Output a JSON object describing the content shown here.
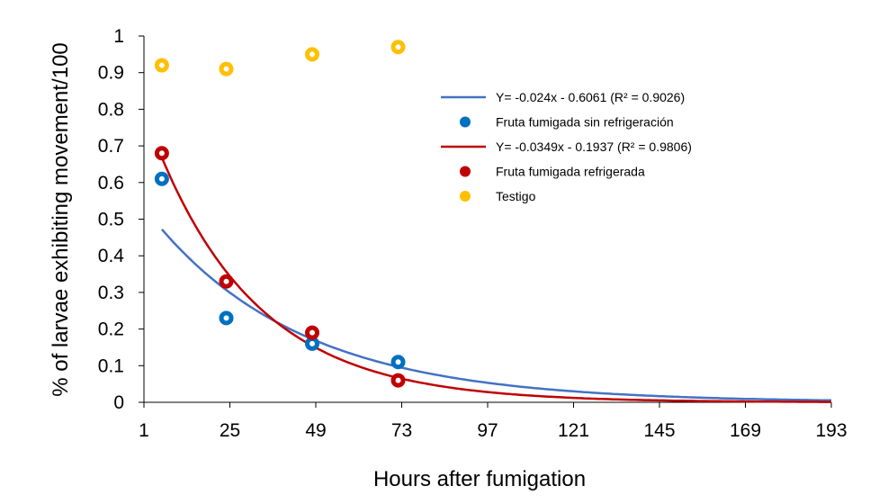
{
  "chart_data": {
    "type": "scatter",
    "title": "",
    "xlabel": "Hours after fumigation",
    "ylabel": "% of larvae exhibiting  movement/100",
    "xlim": [
      1,
      193
    ],
    "ylim": [
      0,
      1
    ],
    "x_ticks": [
      1,
      25,
      49,
      73,
      97,
      121,
      145,
      169,
      193
    ],
    "y_ticks": [
      0,
      0.1,
      0.2,
      0.3,
      0.4,
      0.5,
      0.6,
      0.7,
      0.8,
      0.9,
      1
    ],
    "x_tick_labels": [
      "1",
      "25",
      "49",
      "73",
      "97",
      "121",
      "145",
      "169",
      "193"
    ],
    "y_tick_labels": [
      "0",
      "0.1",
      "0.2",
      "0.3",
      "0.4",
      "0.5",
      "0.6",
      "0.7",
      "0.8",
      "0.9",
      "1"
    ],
    "grid": false,
    "legend_position": "top-right",
    "series": [
      {
        "name": "Fruta fumigada sin refrigeración",
        "kind": "points",
        "color": "#0070c0",
        "x": [
          6,
          24,
          48,
          72
        ],
        "y": [
          0.61,
          0.23,
          0.16,
          0.11
        ]
      },
      {
        "name": "Fruta fumigada refrigerada",
        "kind": "points",
        "color": "#c00000",
        "x": [
          6,
          24,
          48,
          72
        ],
        "y": [
          0.68,
          0.33,
          0.19,
          0.06
        ]
      },
      {
        "name": "Testigo",
        "kind": "points",
        "color": "#ffc000",
        "x": [
          6,
          24,
          48,
          72
        ],
        "y": [
          0.92,
          0.91,
          0.95,
          0.97
        ]
      }
    ],
    "trendlines": [
      {
        "label": "Y= -0.024x - 0.6061   (R² = 0.9026)",
        "color": "#4472c4",
        "a": 0.6061,
        "b": 0.024,
        "x_start": 6,
        "x_end": 193
      },
      {
        "label": "Y= -0.0349x - 0.1937  (R² = 0.9806)",
        "color": "#c00000",
        "a": 0.1937,
        "b": 0.0349,
        "x_start": 6,
        "x_end": 193
      }
    ],
    "legend_entries": [
      {
        "kind": "line",
        "color": "#4472c4",
        "label": "Y= -0.024x - 0.6061   (R² = 0.9026)"
      },
      {
        "kind": "marker",
        "color": "#0070c0",
        "label": "Fruta fumigada sin refrigeración"
      },
      {
        "kind": "line",
        "color": "#c00000",
        "label": "Y= -0.0349x - 0.1937  (R² = 0.9806)"
      },
      {
        "kind": "marker",
        "color": "#c00000",
        "label": "Fruta fumigada refrigerada"
      },
      {
        "kind": "marker",
        "color": "#ffc000",
        "label": "Testigo"
      }
    ]
  }
}
